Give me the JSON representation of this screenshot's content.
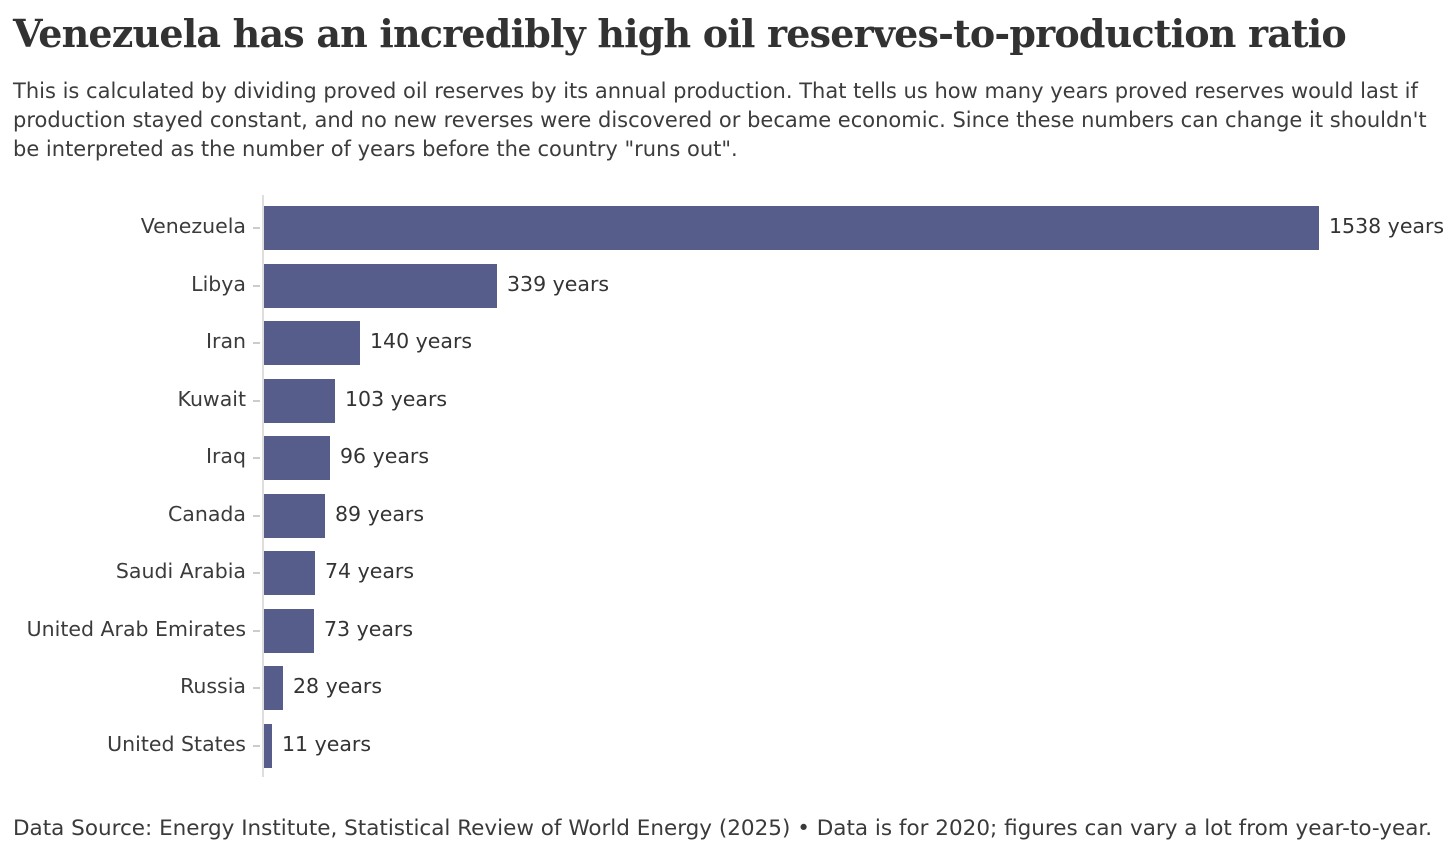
{
  "header": {
    "title": "Venezuela has an incredibly high oil reserves-to-production ratio",
    "subtitle": "This is calculated by dividing proved oil reserves by its annual production. That tells us how many years proved reserves would last if production stayed constant, and no new reverses were discovered or became economic. Since these numbers can change it shouldn't be interpreted as the number of years before the country \"runs out\"."
  },
  "chart_data": {
    "type": "bar",
    "orientation": "horizontal",
    "title": "Venezuela has an incredibly high oil reserves-to-production ratio",
    "categories": [
      "Venezuela",
      "Libya",
      "Iran",
      "Kuwait",
      "Iraq",
      "Canada",
      "Saudi Arabia",
      "United Arab Emirates",
      "Russia",
      "United States"
    ],
    "values": [
      1538,
      339,
      140,
      103,
      96,
      89,
      74,
      73,
      28,
      11
    ],
    "value_labels": [
      "1538 years",
      "339 years",
      "140 years",
      "103 years",
      "96 years",
      "89 years",
      "74 years",
      "73 years",
      "28 years",
      "11 years"
    ],
    "unit": "years",
    "xlabel": "",
    "ylabel": "",
    "xlim": [
      0,
      1538
    ],
    "grid": false,
    "legend": false,
    "bar_color": "#565D8A",
    "axis_color": "#DEDEDE",
    "tick_color": "#CCCCCC"
  },
  "footer": {
    "text": "Data Source: Energy Institute, Statistical Review of World Energy (2025) • Data is for 2020; figures can vary a lot from year-to-year."
  }
}
